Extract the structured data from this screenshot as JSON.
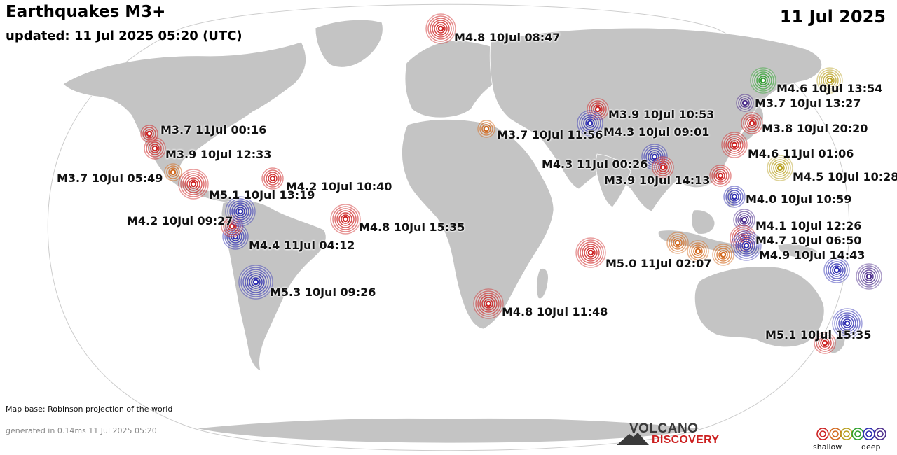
{
  "header": {
    "title": "Earthquakes M3+",
    "updated": "updated: 11 Jul 2025 05:20 (UTC)",
    "date": "11 Jul 2025"
  },
  "footer": {
    "map_base": "Map base: Robinson projection of the world",
    "generated": "generated in 0.14ms 11 Jul 2025 05:20",
    "logo_top": "VOLCANO",
    "logo_bottom": "DISCOVERY",
    "legend_shallow": "shallow",
    "legend_deep": "deep"
  },
  "colors": {
    "ocean": "#ffffff",
    "land": "#c4c4c4",
    "border": "#ffffff",
    "depth_shallow": "#cc2020",
    "depth_intermediate_1": "#d2691e",
    "depth_intermediate_2": "#2aa02a",
    "depth_intermediate_3": "#b8a020",
    "depth_deep_1": "#2a2ab0",
    "depth_deep_2": "#4a2a8a"
  },
  "quakes": [
    {
      "label": "M4.8 10Jul 08:47",
      "depth": "shallow",
      "mag": 4.8
    },
    {
      "label": "M4.6 10Jul 13:54",
      "depth": "intermediate-3",
      "mag": 4.6
    },
    {
      "label": "",
      "depth": "intermediate-2",
      "mag": 4.6
    },
    {
      "label": "M3.7 10Jul 13:27",
      "depth": "deep-2",
      "mag": 3.7
    },
    {
      "label": "M3.9 10Jul 10:53",
      "depth": "shallow",
      "mag": 3.9
    },
    {
      "label": "M4.3 10Jul 09:01",
      "depth": "deep-1",
      "mag": 4.3
    },
    {
      "label": "M3.7 10Jul 11:56",
      "depth": "intermediate-1",
      "mag": 3.7
    },
    {
      "label": "M3.8 10Jul 20:20",
      "depth": "shallow",
      "mag": 3.8
    },
    {
      "label": "M4.6 11Jul 01:06",
      "depth": "shallow",
      "mag": 4.6
    },
    {
      "label": "M4.3 11Jul 00:26",
      "depth": "deep-1",
      "mag": 4.3
    },
    {
      "label": "M3.9 10Jul 14:13",
      "depth": "shallow",
      "mag": 3.9
    },
    {
      "label": "M4.5 10Jul 10:28",
      "depth": "intermediate-3",
      "mag": 4.5
    },
    {
      "label": "",
      "depth": "shallow",
      "mag": 3.8
    },
    {
      "label": "M4.0 10Jul 10:59",
      "depth": "deep-1",
      "mag": 4.0
    },
    {
      "label": "M4.1 10Jul 12:26",
      "depth": "deep-2",
      "mag": 4.1
    },
    {
      "label": "M4.7 10Jul 06:50",
      "depth": "shallow",
      "mag": 4.7
    },
    {
      "label": "M4.9 10Jul 14:43",
      "depth": "deep-1",
      "mag": 4.9
    },
    {
      "label": "",
      "depth": "intermediate-1",
      "mag": 3.8
    },
    {
      "label": "",
      "depth": "intermediate-1",
      "mag": 4.2
    },
    {
      "label": "",
      "depth": "intermediate-1",
      "mag": 3.8
    },
    {
      "label": "M5.0 11Jul 02:07",
      "depth": "shallow",
      "mag": 5.0
    },
    {
      "label": "",
      "depth": "deep-1",
      "mag": 4.5
    },
    {
      "label": "",
      "depth": "deep-2",
      "mag": 4.3
    },
    {
      "label": "M5.1 10Jul 15:35",
      "depth": "deep-1",
      "mag": 5.1
    },
    {
      "label": "",
      "depth": "shallow",
      "mag": 3.9
    },
    {
      "label": "M4.8 10Jul 11:48",
      "depth": "shallow",
      "mag": 4.8
    },
    {
      "label": "M4.8 10Jul 15:35",
      "depth": "shallow",
      "mag": 4.8
    },
    {
      "label": "M4.2 10Jul 10:40",
      "depth": "shallow",
      "mag": 4.2
    },
    {
      "label": "M5.3 10Jul 09:26",
      "depth": "deep-1",
      "mag": 5.3
    },
    {
      "label": "M4.4 11Jul 04:12",
      "depth": "deep-1",
      "mag": 4.4
    },
    {
      "label": "M4.2 10Jul 09:27",
      "depth": "shallow",
      "mag": 4.2
    },
    {
      "label": "M5.1 10Jul 13:19",
      "depth": "deep-1",
      "mag": 5.1
    },
    {
      "label": "M3.7 10Jul 05:49",
      "depth": "intermediate-1",
      "mag": 3.7
    },
    {
      "label": "",
      "depth": "shallow",
      "mag": 5.0
    },
    {
      "label": "M3.9 10Jul 12:33",
      "depth": "shallow",
      "mag": 3.9
    },
    {
      "label": "M3.7 11Jul 00:16",
      "depth": "shallow",
      "mag": 3.7
    }
  ]
}
